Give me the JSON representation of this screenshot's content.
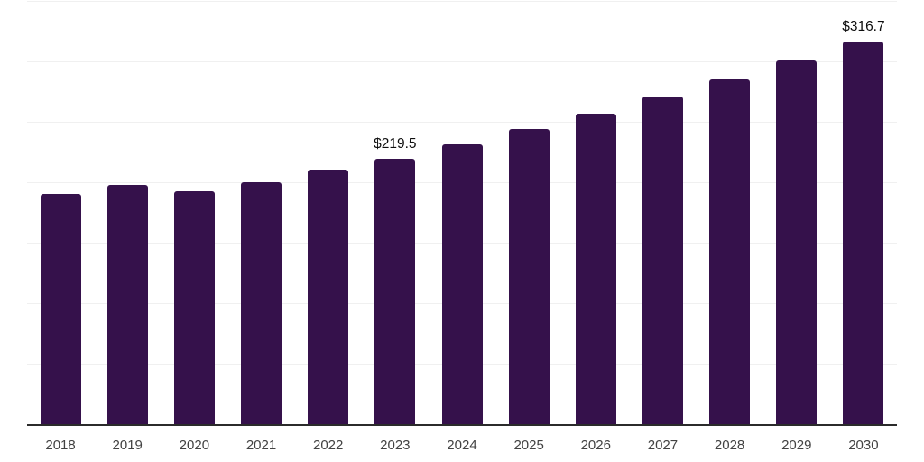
{
  "chart_data": {
    "type": "bar",
    "title": "",
    "xlabel": "",
    "ylabel": "",
    "categories": [
      "2018",
      "2019",
      "2020",
      "2021",
      "2022",
      "2023",
      "2024",
      "2025",
      "2026",
      "2027",
      "2028",
      "2029",
      "2030"
    ],
    "values": [
      190.5,
      198.0,
      192.5,
      200.0,
      210.5,
      219.5,
      231.3,
      243.8,
      256.9,
      270.7,
      285.3,
      300.6,
      316.7
    ],
    "value_labels": [
      "",
      "",
      "",
      "",
      "",
      "$219.5",
      "",
      "",
      "",
      "",
      "",
      "",
      "$316.7"
    ],
    "ylim": [
      0,
      350
    ],
    "gridline_step": 50,
    "grid": "horizontal",
    "legend": "none",
    "colors": {
      "bar": "#35114b",
      "gridline": "#f0f0f0",
      "axis_line": "#2b2b2b",
      "tick_label": "#424242",
      "value_label": "#0d0d0d",
      "background": "#ffffff"
    }
  }
}
